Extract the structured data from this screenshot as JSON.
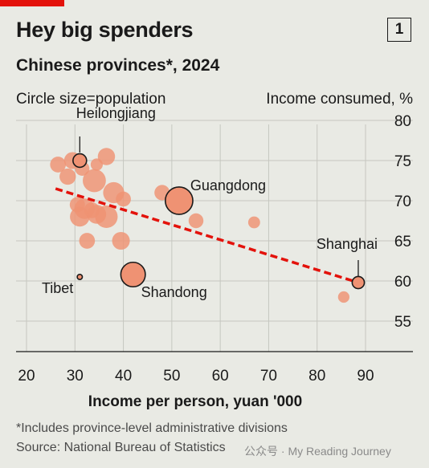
{
  "header": {
    "title": "Hey big spenders",
    "badge": "1",
    "subtitle": "Chinese provinces*, 2024",
    "size_note": "Circle size=population"
  },
  "footer": {
    "footnote": "*Includes province-level administrative divisions",
    "source": "Source: National Bureau of Statistics",
    "watermark": "公众号 · My Reading Journey"
  },
  "colors": {
    "background": "#e9eae4",
    "bubble": "#ef9273",
    "trend": "#e3120b",
    "brand": "#e3120b"
  },
  "chart_data": {
    "type": "scatter",
    "xlabel": "Income per person, yuan '000",
    "ylabel": "Income consumed, %",
    "xlim": [
      20,
      90
    ],
    "ylim": [
      55,
      80
    ],
    "xticks": [
      20,
      30,
      40,
      50,
      60,
      70,
      80,
      90
    ],
    "yticks": [
      55,
      60,
      65,
      70,
      75,
      80
    ],
    "grid": true,
    "size_encoding": "population",
    "points": [
      {
        "x": 26.5,
        "y": 74.5,
        "size": 4.2
      },
      {
        "x": 28.5,
        "y": 73.0,
        "size": 4.5
      },
      {
        "x": 29.5,
        "y": 75.0,
        "size": 4.8
      },
      {
        "x": 31.0,
        "y": 75.0,
        "size": 3.1,
        "label": "Heilongjiang",
        "highlight": true
      },
      {
        "x": 31.5,
        "y": 74.0,
        "size": 3.5
      },
      {
        "x": 34.0,
        "y": 72.5,
        "size": 9.0
      },
      {
        "x": 34.5,
        "y": 74.5,
        "size": 2.5
      },
      {
        "x": 36.5,
        "y": 75.5,
        "size": 5.0
      },
      {
        "x": 38.0,
        "y": 71.0,
        "size": 7.5
      },
      {
        "x": 40.0,
        "y": 70.2,
        "size": 3.8
      },
      {
        "x": 30.5,
        "y": 69.5,
        "size": 3.9
      },
      {
        "x": 32.0,
        "y": 69.0,
        "size": 7.0
      },
      {
        "x": 33.5,
        "y": 68.8,
        "size": 4.2
      },
      {
        "x": 31.0,
        "y": 68.0,
        "size": 6.5
      },
      {
        "x": 34.5,
        "y": 68.3,
        "size": 6.0
      },
      {
        "x": 36.5,
        "y": 68.0,
        "size": 8.5
      },
      {
        "x": 32.5,
        "y": 65.0,
        "size": 4.2
      },
      {
        "x": 39.5,
        "y": 65.0,
        "size": 5.3
      },
      {
        "x": 48.0,
        "y": 71.0,
        "size": 4.0
      },
      {
        "x": 51.5,
        "y": 70.0,
        "size": 12.7,
        "label": "Guangdong",
        "highlight": true
      },
      {
        "x": 55.0,
        "y": 67.5,
        "size": 3.7
      },
      {
        "x": 67.0,
        "y": 67.3,
        "size": 2.4
      },
      {
        "x": 42.0,
        "y": 60.8,
        "size": 10.1,
        "label": "Shandong",
        "highlight": true
      },
      {
        "x": 31.0,
        "y": 60.5,
        "size": 0.37,
        "label": "Tibet",
        "highlight": true
      },
      {
        "x": 88.5,
        "y": 59.8,
        "size": 2.5,
        "label": "Shanghai",
        "highlight": true
      },
      {
        "x": 85.5,
        "y": 58.0,
        "size": 2.2
      }
    ],
    "trendline": {
      "x": [
        26,
        88.5
      ],
      "y": [
        71.5,
        59.8
      ],
      "style": "dashed"
    }
  }
}
